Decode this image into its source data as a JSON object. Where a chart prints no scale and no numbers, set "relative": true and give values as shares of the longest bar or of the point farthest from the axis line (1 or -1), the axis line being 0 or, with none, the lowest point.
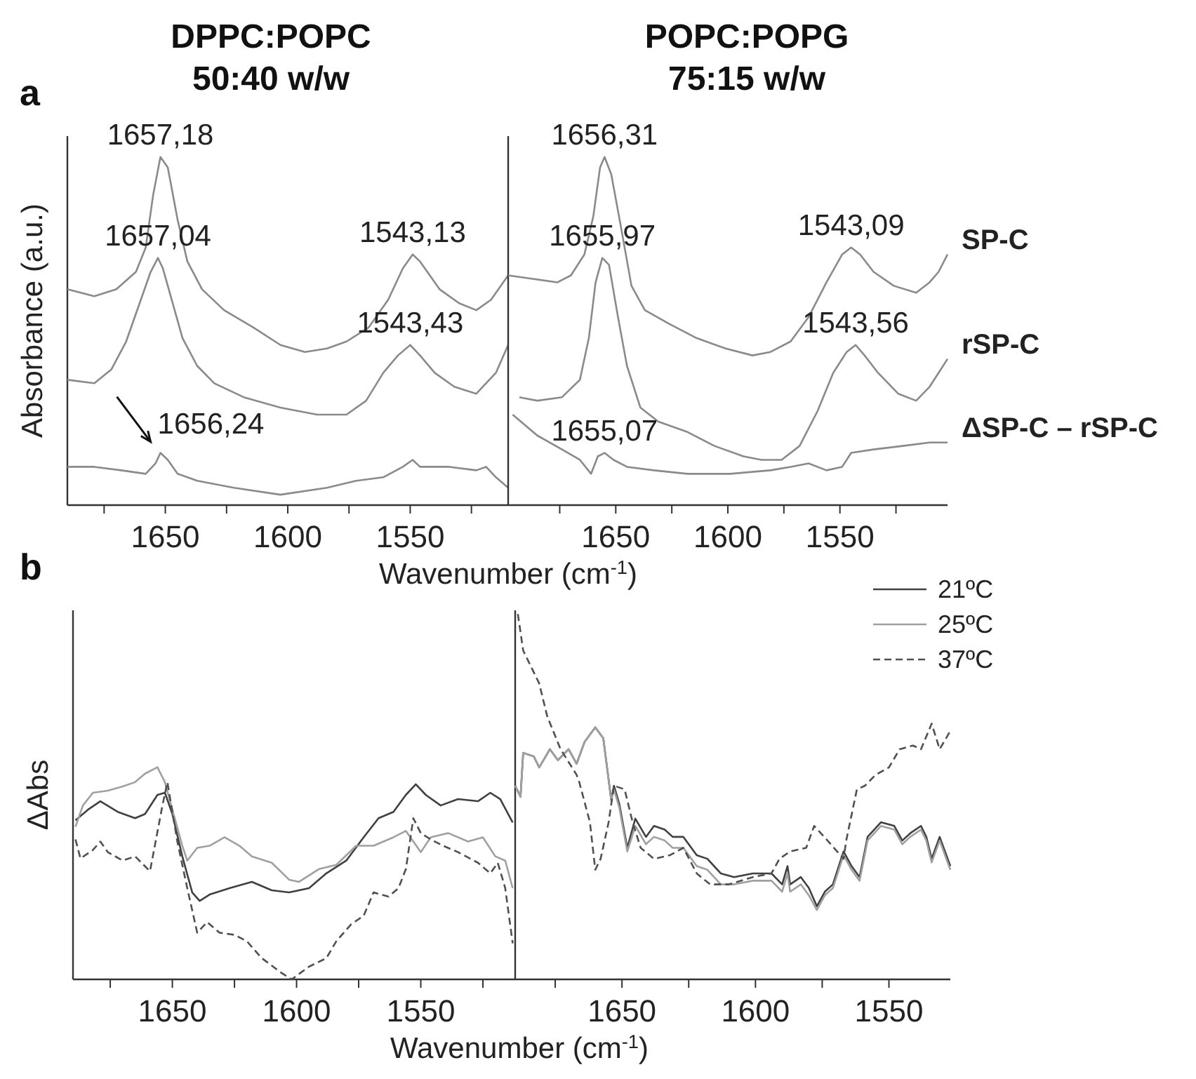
{
  "chart_data": [
    {
      "type": "line",
      "title": "DPPC:POPC",
      "subtitle": "50:40 w/w",
      "ylabel": "Absorbance (a.u.)",
      "xlabel": "Wavenumber (cm$^{-1}$)",
      "relative": true,
      "xlim": [
        1690,
        1510
      ],
      "xticks": [
        {
          "value": 1675,
          "label": null
        },
        1650,
        {
          "value": 1625,
          "label": null
        },
        1600,
        {
          "value": 1575,
          "label": null
        },
        1550,
        {
          "value": 1525,
          "label": null
        }
      ],
      "annotations": [
        "a",
        {
          "text": "1657,18",
          "x": 1652,
          "y": 1.0
        },
        {
          "text": "1657,04",
          "x": 1653,
          "y": 0.71
        },
        {
          "text": "1543,13",
          "x": 1549,
          "y": 0.72
        },
        {
          "text": "1543,43",
          "x": 1550,
          "y": 0.46
        },
        {
          "text": "1656,24",
          "x": 1652,
          "y": 0.15
        }
      ],
      "series": [
        {
          "color": "#8a8a8a",
          "x": [
            1690,
            1679,
            1670,
            1662,
            1658,
            1655,
            1652,
            1649,
            1645,
            1641,
            1635,
            1626,
            1614,
            1603,
            1593,
            1584,
            1576,
            1567,
            1559,
            1553,
            1549,
            1546,
            1538,
            1530,
            1523,
            1517,
            1510
          ],
          "values": [
            0.62,
            0.6,
            0.62,
            0.67,
            0.74,
            0.89,
            1.0,
            0.97,
            0.82,
            0.7,
            0.62,
            0.56,
            0.51,
            0.46,
            0.44,
            0.45,
            0.47,
            0.51,
            0.59,
            0.68,
            0.72,
            0.7,
            0.62,
            0.58,
            0.56,
            0.59,
            0.66
          ]
        },
        {
          "color": "#8a8a8a",
          "x": [
            1690,
            1679,
            1672,
            1666,
            1660,
            1656,
            1653,
            1651,
            1647,
            1643,
            1637,
            1630,
            1618,
            1603,
            1588,
            1576,
            1568,
            1561,
            1555,
            1550,
            1546,
            1540,
            1532,
            1523,
            1515,
            1510
          ],
          "values": [
            0.36,
            0.35,
            0.39,
            0.47,
            0.59,
            0.67,
            0.71,
            0.68,
            0.58,
            0.48,
            0.4,
            0.35,
            0.31,
            0.28,
            0.26,
            0.26,
            0.3,
            0.38,
            0.43,
            0.46,
            0.43,
            0.38,
            0.34,
            0.32,
            0.38,
            0.46
          ]
        },
        {
          "color": "#8a8a8a",
          "x": [
            1690,
            1679,
            1668,
            1658,
            1654,
            1652,
            1649,
            1645,
            1637,
            1622,
            1603,
            1584,
            1572,
            1561,
            1553,
            1549,
            1546,
            1534,
            1523,
            1519,
            1515,
            1510
          ],
          "values": [
            0.11,
            0.11,
            0.1,
            0.09,
            0.12,
            0.15,
            0.13,
            0.09,
            0.07,
            0.05,
            0.03,
            0.05,
            0.07,
            0.08,
            0.11,
            0.13,
            0.11,
            0.11,
            0.1,
            0.11,
            0.08,
            0.05
          ]
        }
      ]
    },
    {
      "type": "line",
      "title": "POPC:POPG",
      "subtitle": "75:15 w/w",
      "relative": true,
      "xlim": [
        1698,
        1502
      ],
      "xticks": [
        {
          "value": 1675,
          "label": null
        },
        1650,
        {
          "value": 1625,
          "label": null
        },
        1600,
        {
          "value": 1575,
          "label": null
        },
        1550,
        {
          "value": 1525,
          "label": null
        }
      ],
      "annotations": [
        {
          "text": "1656,31",
          "x": 1655,
          "y": 1.0
        },
        {
          "text": "1655,97",
          "x": 1656,
          "y": 0.71
        },
        {
          "text": "1543,09",
          "x": 1545,
          "y": 0.74
        },
        {
          "text": "1543,56",
          "x": 1543,
          "y": 0.46
        },
        {
          "text": "1655,07",
          "x": 1655,
          "y": 0.15
        }
      ],
      "series": [
        {
          "name": "SP-C",
          "color": "#8a8a8a",
          "x": [
            1698,
            1687,
            1676,
            1670,
            1664,
            1660,
            1657,
            1655,
            1652,
            1648,
            1643,
            1637,
            1626,
            1614,
            1601,
            1589,
            1581,
            1572,
            1564,
            1556,
            1549,
            1545,
            1541,
            1535,
            1526,
            1516,
            1510,
            1506,
            1502
          ],
          "values": [
            0.66,
            0.65,
            0.64,
            0.66,
            0.72,
            0.83,
            0.97,
            1.0,
            0.95,
            0.81,
            0.63,
            0.56,
            0.52,
            0.48,
            0.45,
            0.43,
            0.44,
            0.47,
            0.54,
            0.64,
            0.72,
            0.74,
            0.72,
            0.67,
            0.63,
            0.61,
            0.64,
            0.67,
            0.72
          ]
        },
        {
          "name": "rSP-C",
          "color": "#8a8a8a",
          "x": [
            1693,
            1685,
            1674,
            1666,
            1662,
            1659,
            1656,
            1653,
            1649,
            1645,
            1639,
            1631,
            1618,
            1606,
            1593,
            1585,
            1576,
            1568,
            1560,
            1553,
            1547,
            1543,
            1539,
            1533,
            1524,
            1516,
            1510,
            1506,
            1502
          ],
          "values": [
            0.31,
            0.3,
            0.31,
            0.36,
            0.48,
            0.64,
            0.71,
            0.69,
            0.54,
            0.4,
            0.28,
            0.24,
            0.21,
            0.17,
            0.14,
            0.13,
            0.13,
            0.17,
            0.27,
            0.38,
            0.44,
            0.46,
            0.43,
            0.38,
            0.32,
            0.3,
            0.34,
            0.38,
            0.42
          ]
        },
        {
          "name": "ΔSP-C – rSP-C",
          "color": "#8a8a8a",
          "x": [
            1696,
            1685,
            1674,
            1666,
            1661,
            1658,
            1655,
            1651,
            1645,
            1633,
            1618,
            1599,
            1581,
            1572,
            1564,
            1556,
            1549,
            1545,
            1535,
            1522,
            1510,
            1502
          ],
          "values": [
            0.26,
            0.2,
            0.16,
            0.13,
            0.09,
            0.14,
            0.15,
            0.13,
            0.11,
            0.1,
            0.09,
            0.09,
            0.1,
            0.11,
            0.12,
            0.1,
            0.11,
            0.15,
            0.16,
            0.17,
            0.18,
            0.18
          ]
        }
      ]
    },
    {
      "type": "line",
      "ylabel": "ΔAbs",
      "xlabel": "Wavenumber (cm$^{-1}$)",
      "relative": true,
      "xlim": [
        1690,
        1512
      ],
      "xticks": [
        {
          "value": 1675,
          "label": null
        },
        1650,
        {
          "value": 1625,
          "label": null
        },
        1600,
        {
          "value": 1575,
          "label": null
        },
        1550,
        {
          "value": 1525,
          "label": null
        }
      ],
      "annotations": [
        "b"
      ],
      "series": [
        {
          "color": "#404040",
          "line_style": "solid",
          "x": [
            1689,
            1684,
            1679,
            1672,
            1665,
            1661,
            1656,
            1653,
            1650,
            1646,
            1642,
            1639,
            1635,
            1627,
            1618,
            1610,
            1603,
            1595,
            1588,
            1580,
            1573,
            1567,
            1561,
            1556,
            1552,
            1548,
            1542,
            1535,
            1527,
            1522,
            1518,
            1513
          ],
          "values": [
            0.75,
            0.8,
            0.84,
            0.79,
            0.76,
            0.78,
            0.87,
            0.88,
            0.78,
            0.58,
            0.41,
            0.37,
            0.4,
            0.43,
            0.46,
            0.42,
            0.41,
            0.43,
            0.5,
            0.56,
            0.67,
            0.76,
            0.79,
            0.87,
            0.92,
            0.87,
            0.82,
            0.85,
            0.84,
            0.88,
            0.85,
            0.74
          ]
        },
        {
          "color": "#a0a0a0",
          "line_style": "solid",
          "x": [
            1689,
            1686,
            1682,
            1676,
            1670,
            1665,
            1661,
            1656,
            1653,
            1650,
            1646,
            1644,
            1640,
            1635,
            1629,
            1623,
            1618,
            1610,
            1603,
            1599,
            1591,
            1584,
            1576,
            1569,
            1561,
            1556,
            1550,
            1546,
            1539,
            1531,
            1525,
            1520,
            1516,
            1513
          ],
          "values": [
            0.72,
            0.82,
            0.88,
            0.89,
            0.91,
            0.93,
            0.97,
            1.0,
            0.93,
            0.8,
            0.63,
            0.56,
            0.62,
            0.63,
            0.67,
            0.63,
            0.58,
            0.55,
            0.47,
            0.46,
            0.52,
            0.54,
            0.63,
            0.63,
            0.67,
            0.7,
            0.6,
            0.67,
            0.69,
            0.65,
            0.67,
            0.58,
            0.56,
            0.43
          ]
        },
        {
          "color": "#505050",
          "line_style": "dashed",
          "x": [
            1689,
            1687,
            1682,
            1679,
            1676,
            1670,
            1665,
            1659,
            1654,
            1652,
            1648,
            1644,
            1640,
            1636,
            1631,
            1625,
            1620,
            1614,
            1606,
            1602,
            1595,
            1588,
            1584,
            1578,
            1573,
            1569,
            1563,
            1559,
            1556,
            1553,
            1550,
            1546,
            1541,
            1535,
            1527,
            1522,
            1519,
            1516,
            1513
          ],
          "values": [
            0.66,
            0.57,
            0.61,
            0.65,
            0.6,
            0.56,
            0.58,
            0.51,
            0.82,
            0.93,
            0.65,
            0.43,
            0.22,
            0.27,
            0.22,
            0.21,
            0.18,
            0.1,
            0.03,
            0.0,
            0.06,
            0.1,
            0.18,
            0.26,
            0.3,
            0.41,
            0.39,
            0.43,
            0.52,
            0.76,
            0.69,
            0.66,
            0.63,
            0.6,
            0.55,
            0.5,
            0.55,
            0.43,
            0.17
          ]
        }
      ]
    },
    {
      "type": "line",
      "relative": true,
      "xlim": [
        1690,
        1527
      ],
      "xticks": [
        {
          "value": 1675,
          "label": null
        },
        1650,
        {
          "value": 1625,
          "label": null
        },
        1600,
        {
          "value": 1575,
          "label": null
        },
        1550
      ],
      "legend": "top right",
      "series": [
        {
          "name": "21ºC",
          "color": "#404040",
          "line_style": "solid",
          "x": [
            1690,
            1688,
            1687,
            1683,
            1681,
            1677,
            1674,
            1670,
            1667,
            1664,
            1660,
            1657,
            1654,
            1653,
            1651,
            1648,
            1645,
            1641,
            1638,
            1634,
            1631,
            1627,
            1622,
            1618,
            1613,
            1608,
            1601,
            1594,
            1590,
            1588,
            1587,
            1583,
            1580,
            1577,
            1574,
            1571,
            1567,
            1564,
            1561,
            1558,
            1553,
            1548,
            1545,
            1542,
            1538,
            1536,
            1534,
            1531,
            1529,
            1527
          ],
          "values": [
            0.53,
            0.5,
            0.62,
            0.61,
            0.58,
            0.63,
            0.6,
            0.63,
            0.59,
            0.65,
            0.69,
            0.66,
            0.49,
            0.53,
            0.48,
            0.36,
            0.44,
            0.39,
            0.42,
            0.41,
            0.39,
            0.39,
            0.34,
            0.33,
            0.29,
            0.28,
            0.29,
            0.29,
            0.26,
            0.31,
            0.26,
            0.28,
            0.25,
            0.2,
            0.24,
            0.26,
            0.35,
            0.31,
            0.28,
            0.39,
            0.43,
            0.42,
            0.38,
            0.4,
            0.42,
            0.39,
            0.33,
            0.39,
            0.35,
            0.31
          ]
        },
        {
          "name": "25ºC",
          "color": "#a0a0a0",
          "line_style": "solid",
          "x": [
            1690,
            1688,
            1687,
            1683,
            1681,
            1677,
            1674,
            1670,
            1667,
            1664,
            1660,
            1657,
            1654,
            1653,
            1651,
            1648,
            1645,
            1641,
            1638,
            1634,
            1631,
            1627,
            1622,
            1618,
            1613,
            1608,
            1601,
            1594,
            1590,
            1588,
            1587,
            1583,
            1580,
            1577,
            1574,
            1571,
            1567,
            1564,
            1561,
            1558,
            1553,
            1548,
            1545,
            1542,
            1538,
            1536,
            1534,
            1531,
            1529,
            1527
          ],
          "values": [
            0.53,
            0.5,
            0.62,
            0.61,
            0.58,
            0.63,
            0.6,
            0.63,
            0.59,
            0.65,
            0.69,
            0.66,
            0.49,
            0.52,
            0.47,
            0.35,
            0.42,
            0.37,
            0.39,
            0.38,
            0.36,
            0.36,
            0.31,
            0.3,
            0.26,
            0.26,
            0.27,
            0.27,
            0.24,
            0.29,
            0.24,
            0.26,
            0.23,
            0.19,
            0.23,
            0.25,
            0.34,
            0.3,
            0.27,
            0.38,
            0.42,
            0.41,
            0.37,
            0.39,
            0.41,
            0.38,
            0.32,
            0.38,
            0.34,
            0.3
          ]
        },
        {
          "name": "37ºC",
          "color": "#505050",
          "line_style": "dashed",
          "x": [
            1689,
            1687,
            1681,
            1678,
            1673,
            1667,
            1666,
            1662,
            1660,
            1658,
            1655,
            1653,
            1649,
            1646,
            1643,
            1638,
            1632,
            1627,
            1622,
            1617,
            1610,
            1601,
            1594,
            1591,
            1587,
            1581,
            1578,
            1573,
            1567,
            1566,
            1562,
            1559,
            1555,
            1550,
            1546,
            1541,
            1538,
            1534,
            1531,
            1527
          ],
          "values": [
            1.0,
            0.9,
            0.81,
            0.72,
            0.63,
            0.56,
            0.54,
            0.43,
            0.3,
            0.33,
            0.43,
            0.53,
            0.52,
            0.43,
            0.36,
            0.33,
            0.34,
            0.36,
            0.29,
            0.26,
            0.26,
            0.28,
            0.29,
            0.33,
            0.35,
            0.36,
            0.42,
            0.38,
            0.33,
            0.38,
            0.52,
            0.53,
            0.56,
            0.58,
            0.63,
            0.64,
            0.63,
            0.7,
            0.63,
            0.68
          ]
        }
      ]
    }
  ]
}
